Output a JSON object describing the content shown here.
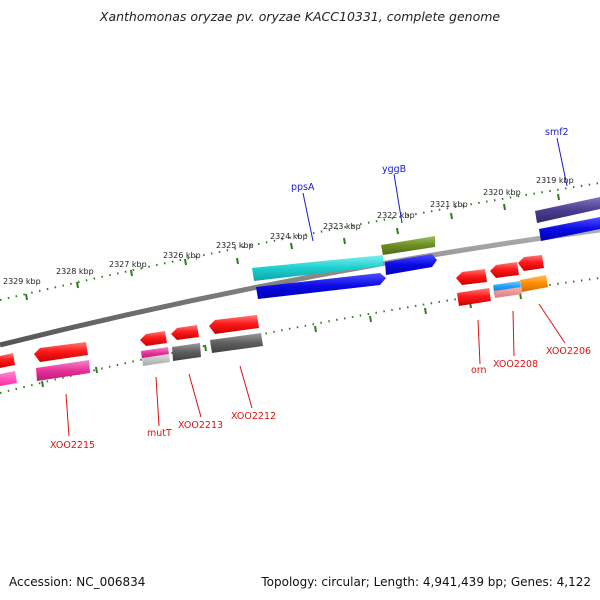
{
  "title": "Xanthomonas oryzae pv. oryzae KACC10331, complete genome",
  "footer": {
    "accession": "Accession: NC_006834",
    "summary": "Topology: circular; Length: 4,941,439 bp; Genes: 4,122"
  },
  "colors": {
    "backbone": "#7f7f7f",
    "ticks": "#2e7d1e",
    "feature_label_forward": "#1a1acc",
    "feature_label_reverse": "#dd1111",
    "cds_red": "#ff1a1a",
    "blue": "#0a0ae6",
    "cyan": "#1ccfcf",
    "olive": "#6b8e23",
    "purple": "#4b3d8f",
    "pink": "#e8309a",
    "gray": "#5e5e5e",
    "orange": "#ff8c00",
    "sky": "#1ea0ff"
  },
  "scale_labels": [
    "2329 kbp",
    "2328 kbp",
    "2327 kbp",
    "2326 kbp",
    "2325 kbp",
    "2324 kbp",
    "2323 kbp",
    "2322 kbp",
    "2321 kbp",
    "2320 kbp",
    "2319 kbp"
  ],
  "gene_labels_forward": [
    "ppsA",
    "yggB",
    "smf2"
  ],
  "gene_labels_reverse": [
    "XOO2215",
    "mutT",
    "XOO2213",
    "XOO2212",
    "orn",
    "XOO2208",
    "XOO2206"
  ]
}
